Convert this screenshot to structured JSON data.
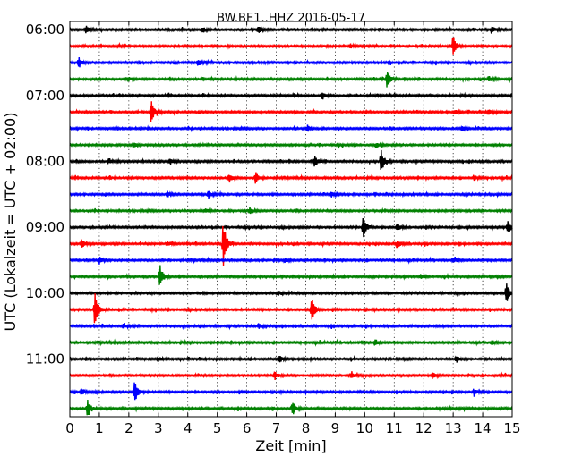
{
  "chart_data": {
    "type": "line",
    "title": "BW.BE1..HHZ 2016-05-17",
    "xlabel": "Zeit  [min]",
    "ylabel": "UTC (Lokalzeit = UTC + 02:00)",
    "xlim": [
      0,
      15
    ],
    "x_ticks": [
      "0",
      "1",
      "2",
      "3",
      "4",
      "5",
      "6",
      "7",
      "8",
      "9",
      "10",
      "11",
      "12",
      "13",
      "14",
      "15"
    ],
    "y_tick_labels": [
      "06:00",
      "07:00",
      "08:00",
      "09:00",
      "10:00",
      "11:00"
    ],
    "row_minutes": 15,
    "first_row_utc": "06:00",
    "row_colors": [
      "#000000",
      "#ff0000",
      "#0000ff",
      "#008000"
    ],
    "grid": {
      "x_dotted": true
    },
    "series": [
      {
        "start": "06:00",
        "color": "black",
        "events": [
          [
            0.55,
            0.55
          ],
          [
            4.5,
            0.35
          ],
          [
            6.4,
            0.4
          ],
          [
            14.3,
            0.45
          ]
        ]
      },
      {
        "start": "06:15",
        "color": "red",
        "events": [
          [
            13.0,
            1.4
          ],
          [
            9.5,
            0.3
          ]
        ]
      },
      {
        "start": "06:30",
        "color": "blue",
        "events": [
          [
            0.3,
            0.7
          ],
          [
            4.35,
            0.45
          ]
        ]
      },
      {
        "start": "06:45",
        "color": "green",
        "events": [
          [
            10.75,
            1.2
          ],
          [
            14.2,
            0.4
          ],
          [
            2.0,
            0.3
          ]
        ]
      },
      {
        "start": "07:00",
        "color": "black",
        "events": [
          [
            8.55,
            0.6
          ],
          [
            7.6,
            0.3
          ]
        ]
      },
      {
        "start": "07:15",
        "color": "red",
        "events": [
          [
            2.75,
            1.6
          ],
          [
            13.05,
            0.35
          ],
          [
            14.2,
            0.35
          ]
        ]
      },
      {
        "start": "07:30",
        "color": "blue",
        "events": [
          [
            8.05,
            0.45
          ],
          [
            13.3,
            0.3
          ]
        ]
      },
      {
        "start": "07:45",
        "color": "green",
        "events": [
          [
            2.2,
            0.3
          ],
          [
            10.4,
            0.3
          ]
        ]
      },
      {
        "start": "08:00",
        "color": "black",
        "events": [
          [
            10.55,
            1.5
          ],
          [
            8.3,
            0.65
          ],
          [
            3.4,
            0.35
          ],
          [
            1.3,
            0.3
          ]
        ]
      },
      {
        "start": "08:15",
        "color": "red",
        "events": [
          [
            6.3,
            0.8
          ],
          [
            5.4,
            0.6
          ],
          [
            13.7,
            0.35
          ]
        ]
      },
      {
        "start": "08:30",
        "color": "blue",
        "events": [
          [
            4.7,
            0.55
          ],
          [
            3.3,
            0.4
          ],
          [
            8.85,
            0.35
          ]
        ]
      },
      {
        "start": "08:45",
        "color": "green",
        "events": [
          [
            6.1,
            0.5
          ],
          [
            4.6,
            0.3
          ]
        ]
      },
      {
        "start": "09:00",
        "color": "black",
        "events": [
          [
            9.95,
            1.6
          ],
          [
            14.85,
            0.8
          ],
          [
            11.1,
            0.45
          ]
        ]
      },
      {
        "start": "09:15",
        "color": "red",
        "events": [
          [
            5.2,
            2.8
          ],
          [
            11.1,
            0.6
          ],
          [
            0.4,
            0.55
          ],
          [
            3.3,
            0.35
          ]
        ]
      },
      {
        "start": "09:30",
        "color": "blue",
        "events": [
          [
            1.0,
            0.45
          ],
          [
            13.0,
            0.35
          ],
          [
            7.3,
            0.3
          ]
        ]
      },
      {
        "start": "09:45",
        "color": "green",
        "events": [
          [
            3.05,
            1.5
          ],
          [
            11.9,
            0.3
          ]
        ]
      },
      {
        "start": "10:00",
        "color": "black",
        "events": [
          [
            14.8,
            1.4
          ],
          [
            7.05,
            0.4
          ]
        ]
      },
      {
        "start": "10:15",
        "color": "red",
        "events": [
          [
            0.85,
            2.4
          ],
          [
            8.2,
            1.6
          ]
        ]
      },
      {
        "start": "10:30",
        "color": "blue",
        "events": [
          [
            6.4,
            0.35
          ],
          [
            1.8,
            0.3
          ]
        ]
      },
      {
        "start": "10:45",
        "color": "green",
        "events": [
          [
            10.35,
            0.45
          ],
          [
            14.3,
            0.3
          ]
        ]
      },
      {
        "start": "11:00",
        "color": "black",
        "events": [
          [
            7.1,
            0.45
          ],
          [
            13.1,
            0.4
          ],
          [
            3.0,
            0.3
          ]
        ]
      },
      {
        "start": "11:15",
        "color": "red",
        "events": [
          [
            6.95,
            0.55
          ],
          [
            9.55,
            0.5
          ],
          [
            12.3,
            0.45
          ]
        ]
      },
      {
        "start": "11:30",
        "color": "blue",
        "events": [
          [
            2.2,
            1.8
          ],
          [
            0.4,
            0.5
          ],
          [
            13.7,
            0.4
          ]
        ]
      },
      {
        "start": "11:45",
        "color": "green",
        "events": [
          [
            0.6,
            1.3
          ],
          [
            7.55,
            0.9
          ]
        ]
      }
    ]
  }
}
